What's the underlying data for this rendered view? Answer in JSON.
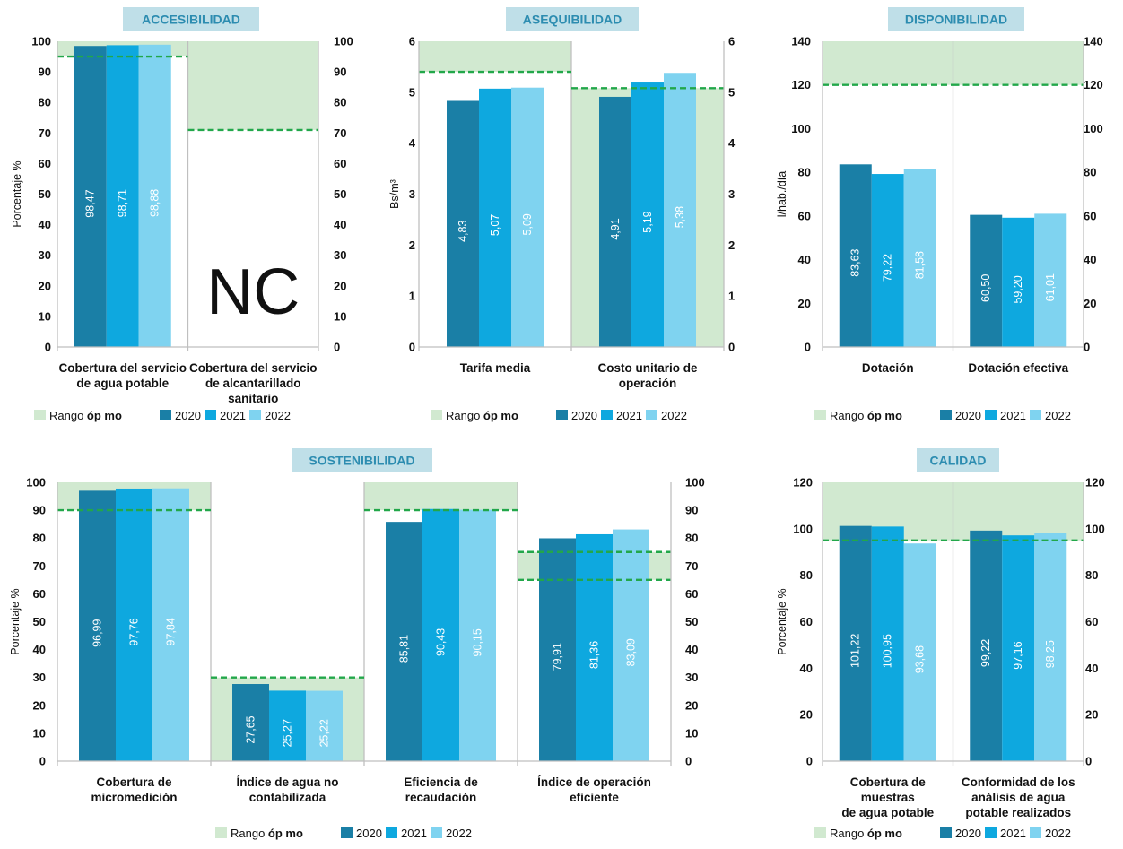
{
  "legend": {
    "range_prefix": "Rango ",
    "range_bold": "óp mo",
    "years": [
      "2020",
      "2021",
      "2022"
    ]
  },
  "colors": {
    "y2020": "#1a7fa6",
    "y2021": "#0ea8df",
    "y2022": "#7fd3f0",
    "range_fill": "#d1e9d0",
    "target_line": "#22a74a",
    "title_bg": "#bfdfe8",
    "title_text": "#2c8cb0",
    "axis": "#bfbfbf"
  },
  "chart_data": [
    {
      "type": "bar",
      "title": "ACCESIBILIDAD",
      "ylabel": "Porcentaje %",
      "ylim": [
        0,
        100
      ],
      "yticks": [
        0,
        10,
        20,
        30,
        40,
        50,
        60,
        70,
        80,
        90,
        100
      ],
      "categories": [
        [
          "Cobertura del servicio",
          "de agua potable"
        ],
        [
          "Cobertura del servicio",
          "de alcantarillado",
          "sanitario"
        ]
      ],
      "series": [
        {
          "name": "2020",
          "values": [
            98.47,
            null
          ],
          "labels": [
            "98,47",
            ""
          ]
        },
        {
          "name": "2021",
          "values": [
            98.71,
            null
          ],
          "labels": [
            "98,71",
            ""
          ]
        },
        {
          "name": "2022",
          "values": [
            98.88,
            null
          ],
          "labels": [
            "98,88",
            ""
          ]
        }
      ],
      "ranges": [
        [
          95,
          100
        ],
        [
          71,
          100
        ]
      ],
      "targets": [
        [
          95
        ],
        [
          71
        ]
      ],
      "annotation": "NC"
    },
    {
      "type": "bar",
      "title": "ASEQUIBILIDAD",
      "ylabel": "Bs/m³",
      "ylim": [
        0,
        6
      ],
      "yticks": [
        0,
        1,
        2,
        3,
        4,
        5,
        6
      ],
      "categories": [
        [
          "Tarifa media"
        ],
        [
          "Costo unitario de",
          "operación"
        ]
      ],
      "series": [
        {
          "name": "2020",
          "values": [
            4.83,
            4.91
          ],
          "labels": [
            "4,83",
            "4,91"
          ]
        },
        {
          "name": "2021",
          "values": [
            5.07,
            5.19
          ],
          "labels": [
            "5,07",
            "5,19"
          ]
        },
        {
          "name": "2022",
          "values": [
            5.09,
            5.38
          ],
          "labels": [
            "5,09",
            "5,38"
          ]
        }
      ],
      "ranges": [
        [
          5.4,
          6
        ],
        [
          0,
          5.08
        ]
      ],
      "targets": [
        [
          5.4
        ],
        [
          5.08
        ]
      ]
    },
    {
      "type": "bar",
      "title": "DISPONIBILIDAD",
      "ylabel": "l/hab./día",
      "ylim": [
        0,
        140
      ],
      "yticks": [
        0,
        20,
        40,
        60,
        80,
        100,
        120,
        140
      ],
      "categories": [
        [
          "Dotación"
        ],
        [
          "Dotación efectiva"
        ]
      ],
      "series": [
        {
          "name": "2020",
          "values": [
            83.63,
            60.5
          ],
          "labels": [
            "83,63",
            "60,50"
          ]
        },
        {
          "name": "2021",
          "values": [
            79.22,
            59.2
          ],
          "labels": [
            "79,22",
            "59,20"
          ]
        },
        {
          "name": "2022",
          "values": [
            81.58,
            61.01
          ],
          "labels": [
            "81,58",
            "61,01"
          ]
        }
      ],
      "ranges": [
        [
          120,
          140
        ],
        [
          120,
          140
        ]
      ],
      "targets": [
        [
          120
        ],
        [
          120
        ]
      ]
    },
    {
      "type": "bar",
      "title": "SOSTENIBILIDAD",
      "ylabel": "Porcentaje %",
      "ylim": [
        0,
        100
      ],
      "yticks": [
        0,
        10,
        20,
        30,
        40,
        50,
        60,
        70,
        80,
        90,
        100
      ],
      "categories": [
        [
          "Cobertura de",
          "micromedición"
        ],
        [
          "Índice de agua no",
          "contabilizada"
        ],
        [
          "Eficiencia de",
          "recaudación"
        ],
        [
          "Índice de operación",
          "eficiente"
        ]
      ],
      "series": [
        {
          "name": "2020",
          "values": [
            96.99,
            27.65,
            85.81,
            79.91
          ],
          "labels": [
            "96,99",
            "27,65",
            "85,81",
            "79,91"
          ]
        },
        {
          "name": "2021",
          "values": [
            97.76,
            25.27,
            90.43,
            81.36
          ],
          "labels": [
            "97,76",
            "25,27",
            "90,43",
            "81,36"
          ]
        },
        {
          "name": "2022",
          "values": [
            97.84,
            25.22,
            90.15,
            83.09
          ],
          "labels": [
            "97,84",
            "25,22",
            "90,15",
            "83,09"
          ]
        }
      ],
      "ranges": [
        [
          90,
          100
        ],
        [
          0,
          30
        ],
        [
          90,
          100
        ],
        [
          65,
          75
        ]
      ],
      "targets": [
        [
          90
        ],
        [
          30
        ],
        [
          90
        ],
        [
          65,
          75
        ]
      ]
    },
    {
      "type": "bar",
      "title": "CALIDAD",
      "ylabel": "Porcentaje %",
      "ylim": [
        0,
        120
      ],
      "yticks": [
        0,
        20,
        40,
        60,
        80,
        100,
        120
      ],
      "categories": [
        [
          "Cobertura de",
          "muestras",
          "de agua potable"
        ],
        [
          "Conformidad de los",
          "análisis de agua",
          "potable realizados"
        ]
      ],
      "series": [
        {
          "name": "2020",
          "values": [
            101.22,
            99.22
          ],
          "labels": [
            "101,22",
            "99,22"
          ]
        },
        {
          "name": "2021",
          "values": [
            100.95,
            97.16
          ],
          "labels": [
            "100,95",
            "97,16"
          ]
        },
        {
          "name": "2022",
          "values": [
            93.68,
            98.25
          ],
          "labels": [
            "93,68",
            "98,25"
          ]
        }
      ],
      "ranges": [
        [
          95,
          120
        ],
        [
          95,
          120
        ]
      ],
      "targets": [
        [
          95
        ],
        [
          95
        ]
      ]
    }
  ]
}
